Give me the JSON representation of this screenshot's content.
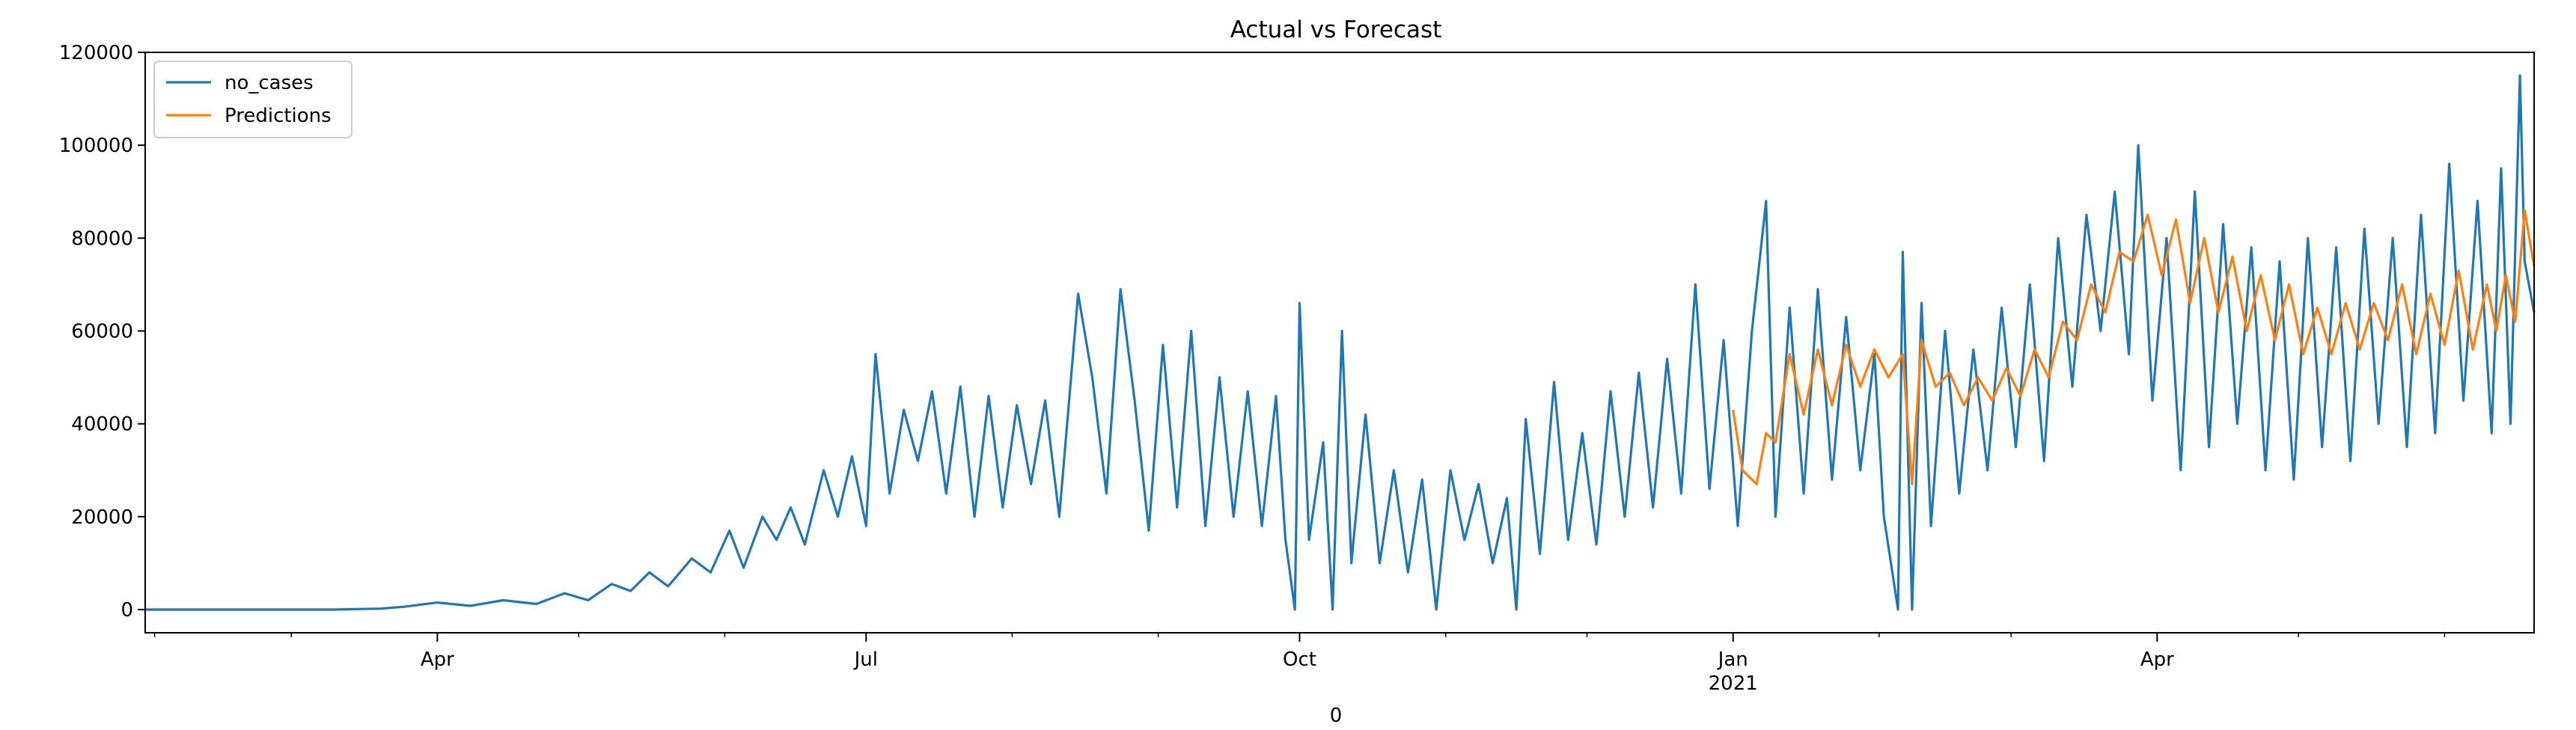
{
  "chart_data": {
    "type": "line",
    "title": "Actual vs Forecast",
    "xlabel": "0",
    "ylabel": "",
    "x_range": [
      "2020-01-30",
      "2021-06-20"
    ],
    "ylim": [
      -5000,
      120000
    ],
    "y_ticks": [
      0,
      20000,
      40000,
      60000,
      80000,
      100000,
      120000
    ],
    "y_tick_labels": [
      "0",
      "20000",
      "40000",
      "60000",
      "80000",
      "100000",
      "120000"
    ],
    "x_ticks": [
      {
        "date": "2020-04-01",
        "label": "Apr",
        "sublabel": ""
      },
      {
        "date": "2020-07-01",
        "label": "Jul",
        "sublabel": ""
      },
      {
        "date": "2020-10-01",
        "label": "Oct",
        "sublabel": ""
      },
      {
        "date": "2021-01-01",
        "label": "Jan",
        "sublabel": "2021"
      },
      {
        "date": "2021-04-01",
        "label": "Apr",
        "sublabel": ""
      }
    ],
    "grid": false,
    "legend": "top-left",
    "series": [
      {
        "name": "no_cases",
        "color": "#1f77b4",
        "points": [
          [
            "2020-01-30",
            0
          ],
          [
            "2020-02-20",
            0
          ],
          [
            "2020-03-10",
            0
          ],
          [
            "2020-03-20",
            200
          ],
          [
            "2020-03-25",
            600
          ],
          [
            "2020-04-01",
            1500
          ],
          [
            "2020-04-08",
            800
          ],
          [
            "2020-04-15",
            2000
          ],
          [
            "2020-04-22",
            1200
          ],
          [
            "2020-04-28",
            3500
          ],
          [
            "2020-05-03",
            2000
          ],
          [
            "2020-05-08",
            5500
          ],
          [
            "2020-05-12",
            4000
          ],
          [
            "2020-05-16",
            8000
          ],
          [
            "2020-05-20",
            5000
          ],
          [
            "2020-05-25",
            11000
          ],
          [
            "2020-05-29",
            8000
          ],
          [
            "2020-06-02",
            17000
          ],
          [
            "2020-06-05",
            9000
          ],
          [
            "2020-06-09",
            20000
          ],
          [
            "2020-06-12",
            15000
          ],
          [
            "2020-06-15",
            22000
          ],
          [
            "2020-06-18",
            14000
          ],
          [
            "2020-06-22",
            30000
          ],
          [
            "2020-06-25",
            20000
          ],
          [
            "2020-06-28",
            33000
          ],
          [
            "2020-07-01",
            18000
          ],
          [
            "2020-07-03",
            55000
          ],
          [
            "2020-07-06",
            25000
          ],
          [
            "2020-07-09",
            43000
          ],
          [
            "2020-07-12",
            32000
          ],
          [
            "2020-07-15",
            47000
          ],
          [
            "2020-07-18",
            25000
          ],
          [
            "2020-07-21",
            48000
          ],
          [
            "2020-07-24",
            20000
          ],
          [
            "2020-07-27",
            46000
          ],
          [
            "2020-07-30",
            22000
          ],
          [
            "2020-08-02",
            44000
          ],
          [
            "2020-08-05",
            27000
          ],
          [
            "2020-08-08",
            45000
          ],
          [
            "2020-08-11",
            20000
          ],
          [
            "2020-08-15",
            68000
          ],
          [
            "2020-08-18",
            50000
          ],
          [
            "2020-08-21",
            25000
          ],
          [
            "2020-08-24",
            69000
          ],
          [
            "2020-08-27",
            45000
          ],
          [
            "2020-08-30",
            17000
          ],
          [
            "2020-09-02",
            57000
          ],
          [
            "2020-09-05",
            22000
          ],
          [
            "2020-09-08",
            60000
          ],
          [
            "2020-09-11",
            18000
          ],
          [
            "2020-09-14",
            50000
          ],
          [
            "2020-09-17",
            20000
          ],
          [
            "2020-09-20",
            47000
          ],
          [
            "2020-09-23",
            18000
          ],
          [
            "2020-09-26",
            46000
          ],
          [
            "2020-09-28",
            15000
          ],
          [
            "2020-09-30",
            0
          ],
          [
            "2020-10-01",
            66000
          ],
          [
            "2020-10-03",
            15000
          ],
          [
            "2020-10-06",
            36000
          ],
          [
            "2020-10-08",
            0
          ],
          [
            "2020-10-10",
            60000
          ],
          [
            "2020-10-12",
            10000
          ],
          [
            "2020-10-15",
            42000
          ],
          [
            "2020-10-18",
            10000
          ],
          [
            "2020-10-21",
            30000
          ],
          [
            "2020-10-24",
            8000
          ],
          [
            "2020-10-27",
            28000
          ],
          [
            "2020-10-30",
            0
          ],
          [
            "2020-11-02",
            30000
          ],
          [
            "2020-11-05",
            15000
          ],
          [
            "2020-11-08",
            27000
          ],
          [
            "2020-11-11",
            10000
          ],
          [
            "2020-11-14",
            24000
          ],
          [
            "2020-11-16",
            0
          ],
          [
            "2020-11-18",
            41000
          ],
          [
            "2020-11-21",
            12000
          ],
          [
            "2020-11-24",
            49000
          ],
          [
            "2020-11-27",
            15000
          ],
          [
            "2020-11-30",
            38000
          ],
          [
            "2020-12-03",
            14000
          ],
          [
            "2020-12-06",
            47000
          ],
          [
            "2020-12-09",
            20000
          ],
          [
            "2020-12-12",
            51000
          ],
          [
            "2020-12-15",
            22000
          ],
          [
            "2020-12-18",
            54000
          ],
          [
            "2020-12-21",
            25000
          ],
          [
            "2020-12-24",
            70000
          ],
          [
            "2020-12-27",
            26000
          ],
          [
            "2020-12-30",
            58000
          ],
          [
            "2021-01-02",
            18000
          ],
          [
            "2021-01-05",
            60000
          ],
          [
            "2021-01-08",
            88000
          ],
          [
            "2021-01-10",
            20000
          ],
          [
            "2021-01-13",
            65000
          ],
          [
            "2021-01-16",
            25000
          ],
          [
            "2021-01-19",
            69000
          ],
          [
            "2021-01-22",
            28000
          ],
          [
            "2021-01-25",
            63000
          ],
          [
            "2021-01-28",
            30000
          ],
          [
            "2021-01-31",
            55000
          ],
          [
            "2021-02-02",
            20000
          ],
          [
            "2021-02-05",
            0
          ],
          [
            "2021-02-06",
            77000
          ],
          [
            "2021-02-08",
            0
          ],
          [
            "2021-02-10",
            66000
          ],
          [
            "2021-02-12",
            18000
          ],
          [
            "2021-02-15",
            60000
          ],
          [
            "2021-02-18",
            25000
          ],
          [
            "2021-02-21",
            56000
          ],
          [
            "2021-02-24",
            30000
          ],
          [
            "2021-02-27",
            65000
          ],
          [
            "2021-03-02",
            35000
          ],
          [
            "2021-03-05",
            70000
          ],
          [
            "2021-03-08",
            32000
          ],
          [
            "2021-03-11",
            80000
          ],
          [
            "2021-03-14",
            48000
          ],
          [
            "2021-03-17",
            85000
          ],
          [
            "2021-03-20",
            60000
          ],
          [
            "2021-03-23",
            90000
          ],
          [
            "2021-03-26",
            55000
          ],
          [
            "2021-03-28",
            100000
          ],
          [
            "2021-03-31",
            45000
          ],
          [
            "2021-04-03",
            80000
          ],
          [
            "2021-04-06",
            30000
          ],
          [
            "2021-04-09",
            90000
          ],
          [
            "2021-04-12",
            35000
          ],
          [
            "2021-04-15",
            83000
          ],
          [
            "2021-04-18",
            40000
          ],
          [
            "2021-04-21",
            78000
          ],
          [
            "2021-04-24",
            30000
          ],
          [
            "2021-04-27",
            75000
          ],
          [
            "2021-04-30",
            28000
          ],
          [
            "2021-05-03",
            80000
          ],
          [
            "2021-05-06",
            35000
          ],
          [
            "2021-05-09",
            78000
          ],
          [
            "2021-05-12",
            32000
          ],
          [
            "2021-05-15",
            82000
          ],
          [
            "2021-05-18",
            40000
          ],
          [
            "2021-05-21",
            80000
          ],
          [
            "2021-05-24",
            35000
          ],
          [
            "2021-05-27",
            85000
          ],
          [
            "2021-05-30",
            38000
          ],
          [
            "2021-06-02",
            96000
          ],
          [
            "2021-06-05",
            45000
          ],
          [
            "2021-06-08",
            88000
          ],
          [
            "2021-06-11",
            38000
          ],
          [
            "2021-06-13",
            95000
          ],
          [
            "2021-06-15",
            40000
          ],
          [
            "2021-06-17",
            115000
          ],
          [
            "2021-06-18",
            75000
          ],
          [
            "2021-06-20",
            64000
          ]
        ]
      },
      {
        "name": "Predictions",
        "color": "#ff7f0e",
        "points": [
          [
            "2021-01-01",
            43000
          ],
          [
            "2021-01-03",
            30000
          ],
          [
            "2021-01-06",
            27000
          ],
          [
            "2021-01-08",
            38000
          ],
          [
            "2021-01-10",
            36000
          ],
          [
            "2021-01-13",
            55000
          ],
          [
            "2021-01-16",
            42000
          ],
          [
            "2021-01-19",
            56000
          ],
          [
            "2021-01-22",
            44000
          ],
          [
            "2021-01-25",
            57000
          ],
          [
            "2021-01-28",
            48000
          ],
          [
            "2021-01-31",
            56000
          ],
          [
            "2021-02-03",
            50000
          ],
          [
            "2021-02-06",
            55000
          ],
          [
            "2021-02-08",
            27000
          ],
          [
            "2021-02-10",
            58000
          ],
          [
            "2021-02-13",
            48000
          ],
          [
            "2021-02-16",
            51000
          ],
          [
            "2021-02-19",
            44000
          ],
          [
            "2021-02-22",
            50000
          ],
          [
            "2021-02-25",
            45000
          ],
          [
            "2021-02-28",
            52000
          ],
          [
            "2021-03-03",
            46000
          ],
          [
            "2021-03-06",
            56000
          ],
          [
            "2021-03-09",
            50000
          ],
          [
            "2021-03-12",
            62000
          ],
          [
            "2021-03-15",
            58000
          ],
          [
            "2021-03-18",
            70000
          ],
          [
            "2021-03-21",
            64000
          ],
          [
            "2021-03-24",
            77000
          ],
          [
            "2021-03-27",
            75000
          ],
          [
            "2021-03-30",
            85000
          ],
          [
            "2021-04-02",
            72000
          ],
          [
            "2021-04-05",
            84000
          ],
          [
            "2021-04-08",
            66000
          ],
          [
            "2021-04-11",
            80000
          ],
          [
            "2021-04-14",
            64000
          ],
          [
            "2021-04-17",
            76000
          ],
          [
            "2021-04-20",
            60000
          ],
          [
            "2021-04-23",
            72000
          ],
          [
            "2021-04-26",
            58000
          ],
          [
            "2021-04-29",
            70000
          ],
          [
            "2021-05-02",
            55000
          ],
          [
            "2021-05-05",
            65000
          ],
          [
            "2021-05-08",
            55000
          ],
          [
            "2021-05-11",
            66000
          ],
          [
            "2021-05-14",
            56000
          ],
          [
            "2021-05-17",
            66000
          ],
          [
            "2021-05-20",
            58000
          ],
          [
            "2021-05-23",
            70000
          ],
          [
            "2021-05-26",
            55000
          ],
          [
            "2021-05-29",
            68000
          ],
          [
            "2021-06-01",
            57000
          ],
          [
            "2021-06-04",
            73000
          ],
          [
            "2021-06-07",
            56000
          ],
          [
            "2021-06-10",
            70000
          ],
          [
            "2021-06-12",
            60000
          ],
          [
            "2021-06-14",
            72000
          ],
          [
            "2021-06-16",
            62000
          ],
          [
            "2021-06-18",
            86000
          ],
          [
            "2021-06-20",
            74000
          ]
        ]
      }
    ]
  }
}
